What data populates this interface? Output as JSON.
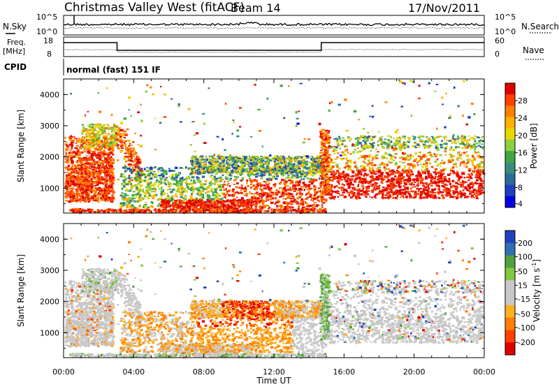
{
  "header": {
    "site": "Christmas Valley West (fitACF)",
    "beam": "Beam 14",
    "date": "17/Nov/2011"
  },
  "panels": {
    "nsky": {
      "left_label": "N.Sky",
      "right_label": "N.Search",
      "ticks": [
        "10^5",
        "10^0"
      ]
    },
    "freq": {
      "left_label_1": "Freq.",
      "left_label_2": "[MHz]",
      "ticks": [
        "18",
        "8"
      ],
      "right_ticks": [
        "60",
        "0"
      ],
      "right_label": "Nave"
    },
    "cpid": {
      "label": "CPID",
      "value": "normal (fast) 151 IF"
    }
  },
  "chart_data": [
    {
      "type": "heatmap",
      "name": "power",
      "ylabel": "Slant Range [km]",
      "ylim": [
        200,
        4500
      ],
      "y_ticks": [
        1000,
        2000,
        3000,
        4000
      ],
      "xlim": [
        0,
        24
      ],
      "colorbar": {
        "label": "Power [dB]",
        "ticks": [
          "28",
          "24",
          "20",
          "16",
          "12",
          "8",
          "4"
        ],
        "colors": [
          "#e00000",
          "#ff4000",
          "#ff8000",
          "#ffb000",
          "#e8d800",
          "#8cd040",
          "#40a840",
          "#3a8c7a",
          "#2a6c9a",
          "#1e40c0",
          "#0000e0"
        ]
      }
    },
    {
      "type": "heatmap",
      "name": "velocity",
      "xlabel": "Time UT",
      "ylabel": "Slant Range [km]",
      "ylim": [
        200,
        4500
      ],
      "y_ticks": [
        1000,
        2000,
        3000,
        4000
      ],
      "xlim": [
        0,
        24
      ],
      "x_ticks": [
        "00:00",
        "04:00",
        "08:00",
        "12:00",
        "16:00",
        "20:00",
        "00:00"
      ],
      "colorbar": {
        "label": "Velocity [m s^-1]",
        "ticks": [
          "200",
          "100",
          "50",
          "15",
          "-15",
          "-50",
          "-100",
          "-200"
        ],
        "colors": [
          "#2040c0",
          "#3070b0",
          "#50a040",
          "#80c840",
          "#c8c8c8",
          "#c8c8c8",
          "#ffb020",
          "#ff8000",
          "#ff4000",
          "#e00000"
        ]
      }
    }
  ]
}
